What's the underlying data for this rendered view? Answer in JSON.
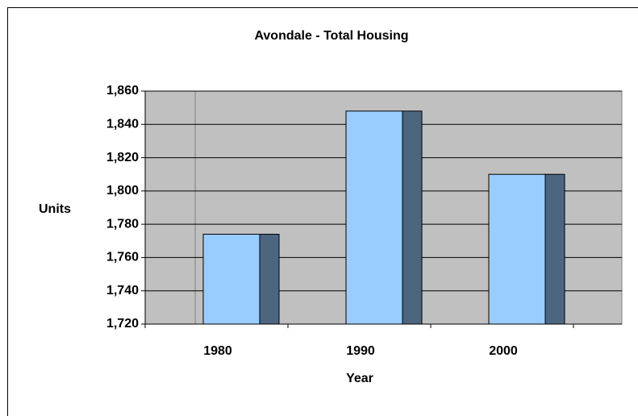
{
  "chart_data": {
    "type": "bar",
    "title": "Avondale - Total Housing",
    "x_label": "Year",
    "y_label": "Units",
    "categories": [
      "1980",
      "1990",
      "2000"
    ],
    "values": [
      1774,
      1848,
      1810
    ],
    "color": "#99ccff",
    "side_color": "#4d6680",
    "ylim": [
      1720,
      1860
    ],
    "yticks": [
      {
        "value": 1720,
        "label": "1,720"
      },
      {
        "value": 1740,
        "label": "1,740"
      },
      {
        "value": 1760,
        "label": "1,760"
      },
      {
        "value": 1780,
        "label": "1,780"
      },
      {
        "value": 1800,
        "label": "1,800"
      },
      {
        "value": 1820,
        "label": "1,820"
      },
      {
        "value": 1840,
        "label": "1,840"
      },
      {
        "value": 1860,
        "label": "1,860"
      }
    ],
    "grid": true
  }
}
